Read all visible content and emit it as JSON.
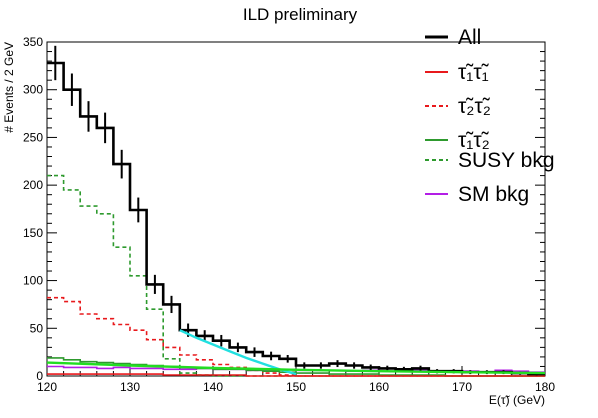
{
  "chart_data": {
    "type": "line",
    "title": "ILD preliminary",
    "xlabel": "E(τ̃) (GeV)",
    "ylabel": "# Events / 2 GeV",
    "xlim": [
      120,
      180
    ],
    "ylim": [
      0,
      350
    ],
    "x_ticks": [
      120,
      130,
      140,
      150,
      160,
      170,
      180
    ],
    "y_ticks": [
      0,
      50,
      100,
      150,
      200,
      250,
      300,
      350
    ],
    "x": [
      120,
      122,
      124,
      126,
      128,
      130,
      132,
      134,
      136,
      138,
      140,
      142,
      144,
      146,
      148,
      150,
      152,
      154,
      156,
      158,
      160,
      162,
      164,
      166,
      168,
      170,
      172,
      174,
      176,
      178
    ],
    "bin_width": 2,
    "series": [
      {
        "name": "All",
        "color": "#000000",
        "style": "solid",
        "values": [
          328,
          300,
          272,
          260,
          222,
          174,
          96,
          75,
          48,
          42,
          37,
          30,
          25,
          21,
          18,
          11,
          11,
          13,
          11,
          9,
          8,
          7,
          8,
          5,
          5,
          4,
          4,
          4,
          3,
          2
        ],
        "errors": [
          18,
          17,
          16,
          16,
          15,
          13,
          10,
          9,
          7,
          6,
          6,
          5,
          5,
          4.5,
          4,
          3.3,
          3.3,
          3.6,
          3.3,
          3,
          2.8,
          2.6,
          2.8,
          2.2,
          2.2,
          2,
          2,
          2,
          1.7,
          1.4
        ]
      },
      {
        "name": "τ̃₁τ̃₁",
        "color": "#e8191c",
        "style": "solid",
        "values": [
          2,
          2,
          2,
          2,
          2,
          2,
          2,
          1,
          1,
          1,
          1,
          1,
          0,
          0,
          0,
          0,
          0,
          0,
          0,
          0,
          0,
          0,
          0,
          0,
          0,
          0,
          0,
          0,
          0,
          0
        ]
      },
      {
        "name": "τ̃₂τ̃₂",
        "color": "#e8191c",
        "style": "dashed",
        "values": [
          82,
          78,
          65,
          60,
          54,
          48,
          38,
          30,
          22,
          17,
          12,
          9,
          6,
          3,
          1,
          0,
          0,
          0,
          0,
          0,
          0,
          0,
          0,
          0,
          0,
          0,
          0,
          0,
          0,
          0
        ]
      },
      {
        "name": "τ̃₁τ̃₂",
        "color": "#2e9a2e",
        "style": "solid",
        "values": [
          19,
          17,
          15,
          14,
          13,
          12,
          11,
          10,
          9,
          8,
          7,
          7,
          6,
          5,
          4,
          3,
          3,
          2,
          2,
          2,
          1,
          1,
          1,
          1,
          0,
          0,
          0,
          0,
          0,
          0
        ]
      },
      {
        "name": "SUSY bkg",
        "color": "#2e9a2e",
        "style": "dashed",
        "values": [
          210,
          195,
          178,
          170,
          135,
          105,
          70,
          18,
          3,
          1,
          0,
          0,
          0,
          0,
          0,
          0,
          0,
          0,
          0,
          0,
          0,
          0,
          0,
          0,
          0,
          0,
          0,
          0,
          0,
          0
        ]
      },
      {
        "name": "SM bkg",
        "color": "#b31ee6",
        "style": "solid",
        "values": [
          10,
          9,
          9,
          8,
          9,
          8,
          8,
          7,
          7,
          8,
          7,
          7,
          6,
          6,
          7,
          6,
          6,
          6,
          5,
          6,
          5,
          5,
          6,
          5,
          4,
          5,
          4,
          6,
          5,
          4
        ]
      }
    ],
    "fits": [
      {
        "color": "#22e0e0",
        "x": [
          136,
          138,
          140,
          142,
          144,
          146,
          148,
          150
        ],
        "values": [
          48,
          40,
          33,
          26,
          19,
          13,
          7,
          2
        ]
      },
      {
        "color": "#22dd22",
        "x": [
          120,
          130,
          140,
          150,
          160,
          170,
          180
        ],
        "values": [
          14,
          11,
          8.5,
          6.5,
          5,
          4,
          3
        ]
      }
    ],
    "legend_position": "top-right"
  }
}
